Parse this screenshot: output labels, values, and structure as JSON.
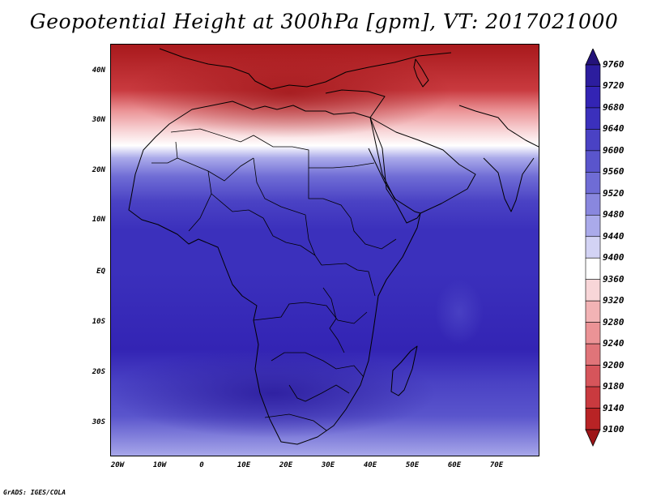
{
  "title": "Geopotential Height at 300hPa [gpm], VT: 2017021000",
  "lat_ticks": [
    "40N",
    "30N",
    "20N",
    "10N",
    "EQ",
    "10S",
    "20S",
    "30S"
  ],
  "lon_ticks": [
    "20W",
    "10W",
    "0",
    "10E",
    "20E",
    "30E",
    "40E",
    "50E",
    "60E",
    "70E"
  ],
  "colorbar": {
    "levels": [
      "9760",
      "9720",
      "9680",
      "9640",
      "9600",
      "9560",
      "9520",
      "9480",
      "9440",
      "9400",
      "9360",
      "9320",
      "9280",
      "9240",
      "9200",
      "9180",
      "9140",
      "9100"
    ],
    "colors": [
      "#24137a",
      "#2c1d9e",
      "#3324b4",
      "#3b30bc",
      "#4a42c4",
      "#5a55cc",
      "#6f6cd5",
      "#8987de",
      "#aaaaea",
      "#d3d3f4",
      "#ffffff",
      "#f8d6d8",
      "#f2b3b5",
      "#eb9396",
      "#e07479",
      "#d6555b",
      "#c93a3f",
      "#b82325",
      "#9e1518"
    ]
  },
  "credit": "GrADS: IGES/COLA"
}
